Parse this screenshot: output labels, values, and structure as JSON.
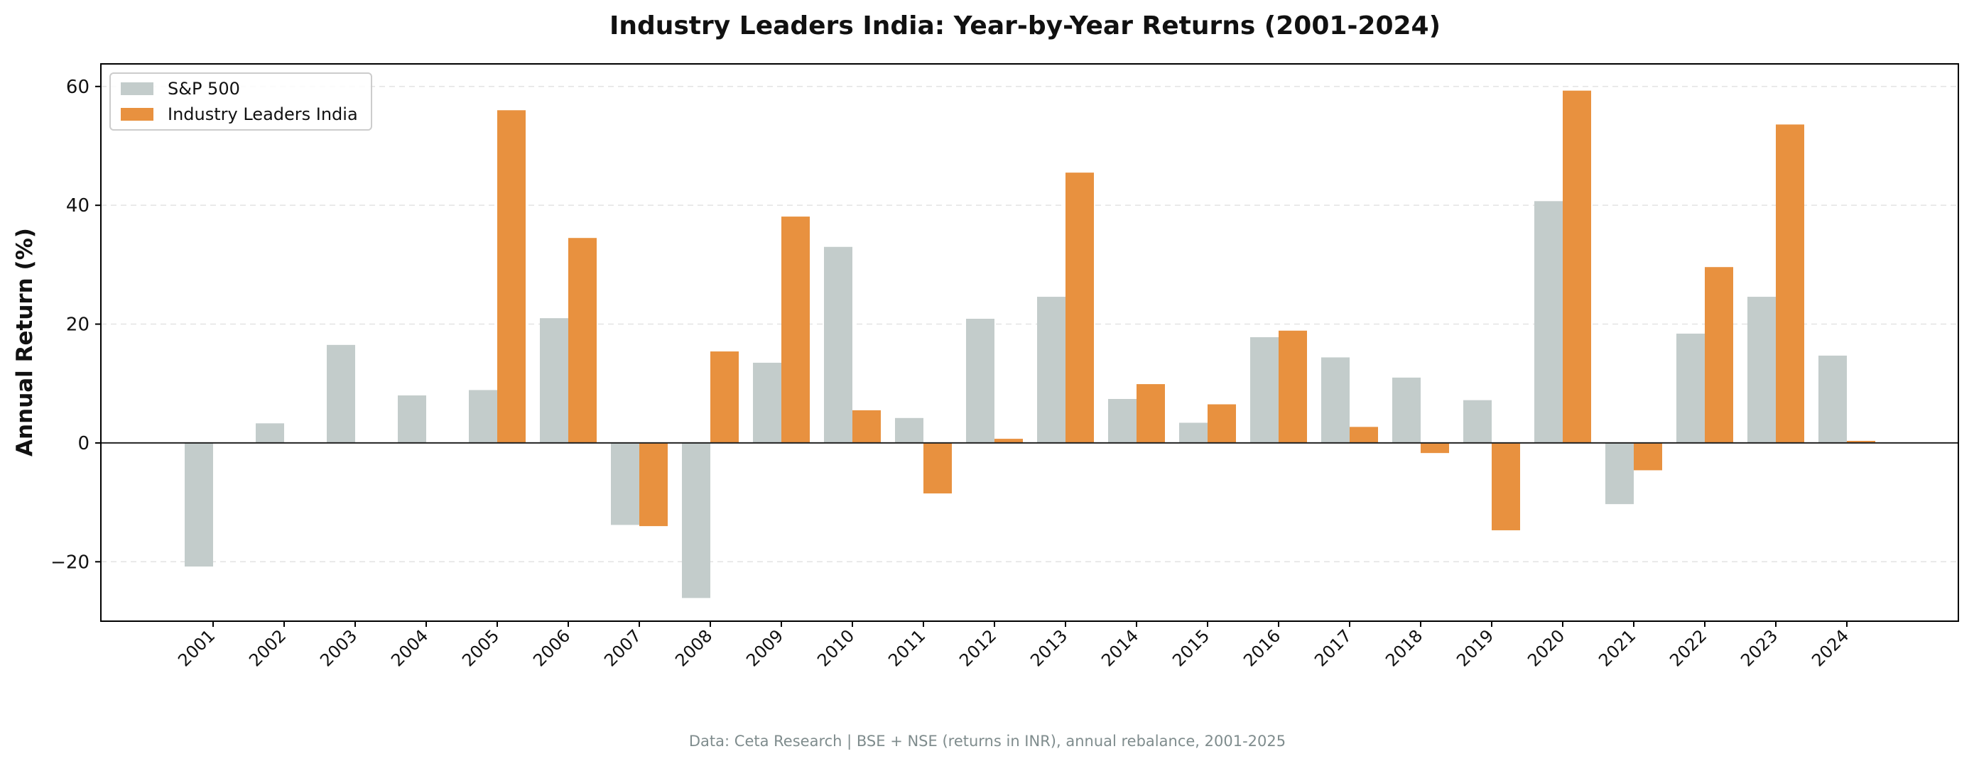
{
  "chart_data": {
    "type": "bar",
    "title": "Industry Leaders India: Year-by-Year Returns (2001-2024)",
    "xlabel": "",
    "ylabel": "Annual Return (%)",
    "ylim": [
      -30,
      63.8
    ],
    "yticks": [
      -20,
      0,
      20,
      40,
      60
    ],
    "grid": "horizontal dashed",
    "legend_position": "top-left",
    "categories": [
      "2001",
      "2002",
      "2003",
      "2004",
      "2005",
      "2006",
      "2007",
      "2008",
      "2009",
      "2010",
      "2011",
      "2012",
      "2013",
      "2014",
      "2015",
      "2016",
      "2017",
      "2018",
      "2019",
      "2020",
      "2021",
      "2022",
      "2023",
      "2024"
    ],
    "series": [
      {
        "name": "S&P 500",
        "color": "#c3cccb",
        "values": [
          -20.8,
          3.3,
          16.5,
          8.0,
          8.9,
          21.0,
          -13.8,
          -26.1,
          13.5,
          33.0,
          4.2,
          20.9,
          24.6,
          7.4,
          3.4,
          17.8,
          14.4,
          11.0,
          7.2,
          40.7,
          -10.3,
          18.4,
          24.6,
          14.7
        ]
      },
      {
        "name": "Industry Leaders India",
        "color": "#e8913f",
        "values": [
          0,
          0,
          0,
          0,
          56.0,
          34.5,
          -14.0,
          15.4,
          38.1,
          5.5,
          -8.5,
          0.7,
          45.5,
          9.9,
          6.5,
          18.9,
          2.7,
          -1.7,
          -14.7,
          59.3,
          -4.6,
          29.6,
          53.6,
          0.35
        ]
      }
    ],
    "footnote": "Data: Ceta Research | BSE + NSE (returns in INR), annual rebalance, 2001-2025"
  }
}
